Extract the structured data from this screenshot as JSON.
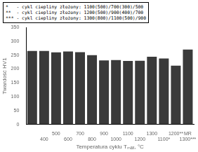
{
  "chart_data": {
    "type": "bar",
    "categories": [
      null,
      "400",
      "500",
      "600",
      "700",
      "800",
      "900",
      "1000",
      "1100",
      "1200",
      "1300",
      "1100*",
      "1200**",
      [
        "MR",
        "1300***"
      ]
    ],
    "values": [
      265,
      265,
      260,
      263,
      261,
      250,
      231,
      232,
      229,
      230,
      244,
      238,
      212,
      270
    ],
    "color": "#3a3a3a",
    "xlabel": "Temperatura cyklu Tₘₐₓ, °C",
    "ylabel": "Twardość HV1",
    "ylim": [
      0,
      350
    ],
    "yticks": [
      0,
      50,
      100,
      150,
      200,
      250,
      300,
      350
    ],
    "grid": false,
    "annotations": [
      "*   - cykl ciepliny złożony: 1100(500)/700(300)/500",
      "**  - cykl ciepliny złożony: 1200(500)/900(400)/700",
      "*** - cykl ciepliny złożony: 1300(800)/1100(500)/900"
    ]
  }
}
